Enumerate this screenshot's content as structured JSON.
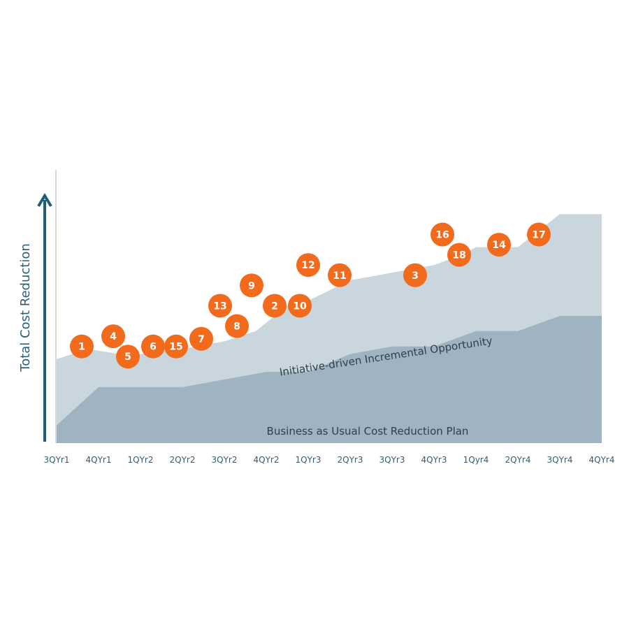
{
  "chart_data": {
    "type": "area",
    "ylabel": "Total Cost Reduction",
    "xlabel": "",
    "categories": [
      "3QYr1",
      "4QYr1",
      "1QYr2",
      "2QYr2",
      "3QYr2",
      "4QYr2",
      "1QYr3",
      "2QYr3",
      "3QYr3",
      "4QYr3",
      "1Qyr4",
      "2QYr4",
      "3QYr4",
      "4QYr4"
    ],
    "ylim": [
      0,
      100
    ],
    "series": [
      {
        "name": "Business as Usual Cost Reduction Plan",
        "color": "#9fb4c0",
        "points": [
          [
            0,
            7
          ],
          [
            1,
            22
          ],
          [
            2,
            22
          ],
          [
            3,
            22
          ],
          [
            4,
            25
          ],
          [
            5,
            28
          ],
          [
            6,
            28
          ],
          [
            7,
            35
          ],
          [
            8,
            38
          ],
          [
            9,
            38
          ],
          [
            10,
            44
          ],
          [
            11,
            44
          ],
          [
            12,
            50
          ],
          [
            13,
            50
          ]
        ]
      },
      {
        "name": "Initiative-driven Incremental Opportunity",
        "color": "#c9d6dd",
        "points": [
          [
            0,
            33
          ],
          [
            0.75,
            37
          ],
          [
            1.5,
            35
          ],
          [
            2,
            35
          ],
          [
            3,
            37
          ],
          [
            4,
            40
          ],
          [
            4.75,
            44
          ],
          [
            5.5,
            54
          ],
          [
            6,
            56
          ],
          [
            7,
            64
          ],
          [
            8,
            67
          ],
          [
            9,
            70
          ],
          [
            9.5,
            73
          ],
          [
            10,
            77
          ],
          [
            11,
            77
          ],
          [
            12,
            90
          ],
          [
            13,
            90
          ]
        ]
      }
    ],
    "markers": [
      {
        "label": "1",
        "x": 0.6,
        "y": 38
      },
      {
        "label": "4",
        "x": 1.35,
        "y": 42
      },
      {
        "label": "5",
        "x": 1.7,
        "y": 34
      },
      {
        "label": "6",
        "x": 2.3,
        "y": 38
      },
      {
        "label": "15",
        "x": 2.85,
        "y": 38
      },
      {
        "label": "7",
        "x": 3.45,
        "y": 41
      },
      {
        "label": "13",
        "x": 3.9,
        "y": 54
      },
      {
        "label": "8",
        "x": 4.3,
        "y": 46
      },
      {
        "label": "9",
        "x": 4.65,
        "y": 62
      },
      {
        "label": "2",
        "x": 5.2,
        "y": 54
      },
      {
        "label": "10",
        "x": 5.8,
        "y": 54
      },
      {
        "label": "12",
        "x": 6.0,
        "y": 70
      },
      {
        "label": "11",
        "x": 6.75,
        "y": 66
      },
      {
        "label": "3",
        "x": 8.55,
        "y": 66
      },
      {
        "label": "16",
        "x": 9.2,
        "y": 82
      },
      {
        "label": "18",
        "x": 9.6,
        "y": 74
      },
      {
        "label": "14",
        "x": 10.55,
        "y": 78
      },
      {
        "label": "17",
        "x": 11.5,
        "y": 82
      }
    ],
    "marker_color": "#f26b1d",
    "axis_color": "#1f5c78"
  }
}
